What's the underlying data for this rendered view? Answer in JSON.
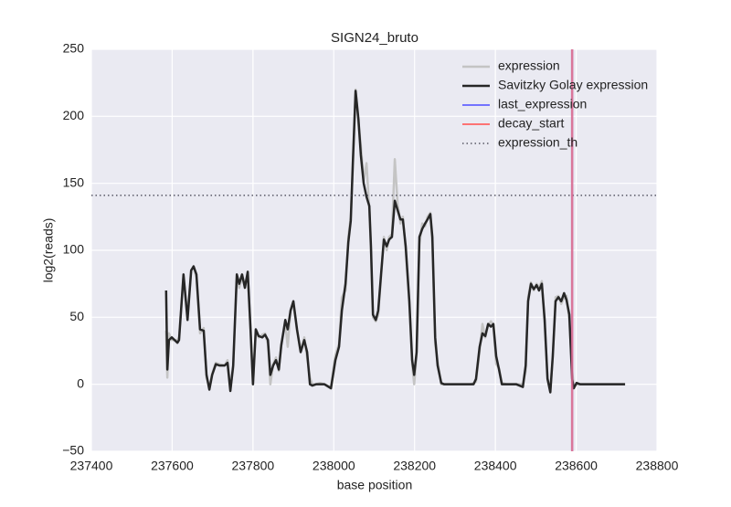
{
  "chart_data": {
    "type": "line",
    "title": "SIGN24_bruto",
    "x_label": "base position",
    "y_label": "log2(reads)",
    "x": [
      237585,
      237588,
      237592,
      237599,
      237613,
      237617,
      237628,
      237638,
      237647,
      237653,
      237660,
      237669,
      237678,
      237685,
      237692,
      237699,
      237708,
      237717,
      237730,
      237737,
      237744,
      237751,
      237760,
      237766,
      237773,
      237780,
      237787,
      237794,
      237800,
      237807,
      237814,
      237823,
      237830,
      237837,
      237843,
      237850,
      237857,
      237864,
      237870,
      237880,
      237886,
      237893,
      237900,
      237909,
      237918,
      237927,
      237934,
      237941,
      237947,
      237956,
      237966,
      237977,
      237993,
      238004,
      238013,
      238020,
      238029,
      238036,
      238042,
      238047,
      238054,
      238061,
      238067,
      238074,
      238081,
      238088,
      238092,
      238097,
      238104,
      238110,
      238117,
      238124,
      238131,
      238137,
      238144,
      238151,
      238158,
      238165,
      238171,
      238178,
      238187,
      238194,
      238199,
      238205,
      238212,
      238219,
      238226,
      238232,
      238239,
      238244,
      238251,
      238257,
      238266,
      238273,
      238305,
      238339,
      238346,
      238352,
      238361,
      238368,
      238375,
      238382,
      238389,
      238395,
      238402,
      238409,
      238416,
      238429,
      238452,
      238468,
      238475,
      238481,
      238488,
      238495,
      238502,
      238508,
      238515,
      238522,
      238529,
      238536,
      238542,
      238549,
      238556,
      238563,
      238570,
      238576,
      238583,
      238590,
      238594,
      238601,
      238610,
      238721
    ],
    "series": [
      {
        "name": "expression",
        "color": "#c4c4c4",
        "width": 2.5,
        "values": [
          40,
          5,
          38,
          33,
          33,
          35,
          80,
          52,
          85,
          88,
          80,
          38,
          42,
          5,
          -2,
          8,
          16,
          15,
          14,
          18,
          -3,
          12,
          80,
          72,
          80,
          75,
          82,
          40,
          0,
          40,
          35,
          37,
          38,
          30,
          0,
          15,
          20,
          10,
          30,
          45,
          28,
          55,
          60,
          40,
          25,
          35,
          20,
          5,
          0,
          0,
          1,
          0,
          -2,
          22,
          30,
          65,
          70,
          110,
          125,
          160,
          220,
          195,
          178,
          152,
          165,
          130,
          100,
          50,
          47,
          52,
          80,
          110,
          100,
          110,
          112,
          168,
          135,
          120,
          125,
          100,
          60,
          15,
          0,
          22,
          105,
          120,
          118,
          125,
          128,
          105,
          30,
          17,
          0,
          0,
          0,
          0,
          1,
          2,
          25,
          45,
          35,
          44,
          47,
          44,
          15,
          12,
          1,
          0,
          0,
          0,
          10,
          65,
          76,
          70,
          75,
          72,
          77,
          45,
          5,
          -4,
          20,
          65,
          66,
          60,
          65,
          66,
          48,
          10,
          -2,
          0,
          0,
          0
        ]
      },
      {
        "name": "Savitzky Golay expression",
        "color": "#262626",
        "width": 2.5,
        "values": [
          70,
          11,
          33,
          35,
          31,
          33,
          82,
          48,
          85,
          88,
          82,
          41,
          40,
          7,
          -4,
          7,
          15,
          14,
          14,
          16,
          -5,
          14,
          82,
          75,
          82,
          72,
          84,
          41,
          0,
          41,
          36,
          35,
          37,
          33,
          7,
          14,
          18,
          11,
          29,
          48,
          41,
          55,
          62,
          41,
          24,
          33,
          24,
          0,
          -1,
          0,
          0,
          0,
          -3,
          18,
          28,
          55,
          75,
          106,
          122,
          164,
          219,
          198,
          171,
          150,
          140,
          133,
          103,
          52,
          48,
          55,
          82,
          108,
          103,
          108,
          110,
          137,
          130,
          123,
          123,
          103,
          62,
          18,
          7,
          24,
          110,
          116,
          120,
          123,
          127,
          110,
          35,
          14,
          1,
          0,
          0,
          0,
          0,
          4,
          28,
          38,
          36,
          45,
          43,
          45,
          21,
          11,
          0,
          0,
          0,
          -2,
          14,
          62,
          75,
          71,
          74,
          70,
          75,
          48,
          4,
          -6,
          21,
          62,
          65,
          62,
          68,
          63,
          52,
          4,
          -3,
          1,
          0,
          0
        ]
      }
    ],
    "vlines": [
      {
        "name": "last_expression",
        "color": "#6666ff",
        "x": 238590
      },
      {
        "name": "decay_start",
        "color": "#ff6666",
        "x": 238590
      }
    ],
    "hlines": [
      {
        "name": "expression_th",
        "color": "#3a3a4a",
        "y": 141
      }
    ],
    "xlim": [
      237400,
      238800
    ],
    "xticks": [
      237400,
      237600,
      237800,
      238000,
      238200,
      238400,
      238600,
      238800
    ],
    "ylim": [
      -50,
      250
    ],
    "yticks": [
      {
        "value": -50,
        "label": "−50"
      },
      0,
      50,
      100,
      150,
      200,
      250
    ],
    "grid": true,
    "background": "#eaeaf2",
    "legend": "upper right"
  }
}
